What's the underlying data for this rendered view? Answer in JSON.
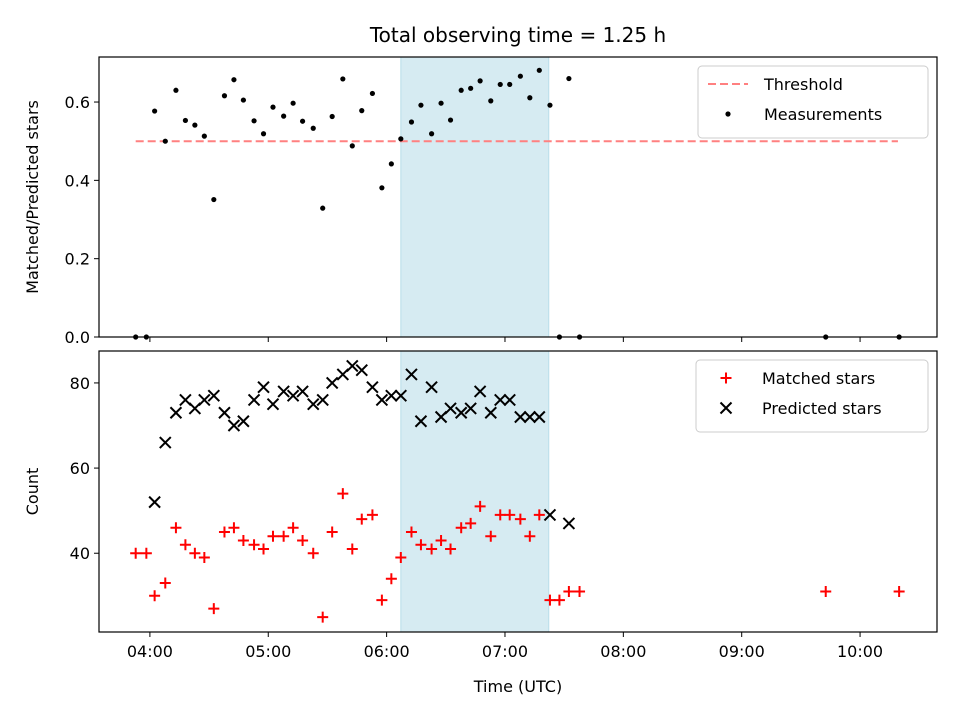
{
  "chart_data": [
    {
      "type": "scatter",
      "title": "Total observing time = 1.25 h",
      "xlabel": "",
      "ylabel": "Matched/Predicted stars",
      "xlim": [
        3.57,
        10.65
      ],
      "ylim": [
        0,
        0.715
      ],
      "yticks": [
        0.0,
        0.2,
        0.4,
        0.6
      ],
      "ytick_labels": [
        "0.0",
        "0.2",
        "0.4",
        "0.6"
      ],
      "xticks": [
        4,
        5,
        6,
        7,
        8,
        9,
        10
      ],
      "xtick_labels_shown": false,
      "highlight_span": {
        "x0": 6.12,
        "x1": 7.37,
        "color": "#add8e6"
      },
      "legend_position": "upper right",
      "legend": [
        "Threshold",
        "Measurements"
      ],
      "threshold": {
        "name": "Threshold",
        "y": 0.5,
        "x": [
          3.88,
          10.32
        ],
        "color": "#ff8080",
        "style": "dashed"
      },
      "series": [
        {
          "name": "Measurements",
          "color": "#000000",
          "marker": "dot",
          "points": [
            [
              3.88,
              0.0
            ],
            [
              3.97,
              0.0
            ],
            [
              4.04,
              0.577
            ],
            [
              4.13,
              0.5
            ],
            [
              4.22,
              0.63
            ],
            [
              4.3,
              0.553
            ],
            [
              4.38,
              0.541
            ],
            [
              4.46,
              0.513
            ],
            [
              4.54,
              0.351
            ],
            [
              4.63,
              0.616
            ],
            [
              4.71,
              0.657
            ],
            [
              4.79,
              0.605
            ],
            [
              4.88,
              0.552
            ],
            [
              4.96,
              0.519
            ],
            [
              5.04,
              0.587
            ],
            [
              5.13,
              0.564
            ],
            [
              5.21,
              0.597
            ],
            [
              5.29,
              0.551
            ],
            [
              5.38,
              0.533
            ],
            [
              5.46,
              0.329
            ],
            [
              5.54,
              0.563
            ],
            [
              5.63,
              0.659
            ],
            [
              5.71,
              0.488
            ],
            [
              5.79,
              0.578
            ],
            [
              5.88,
              0.622
            ],
            [
              5.96,
              0.381
            ],
            [
              6.04,
              0.442
            ],
            [
              6.12,
              0.506
            ],
            [
              6.21,
              0.549
            ],
            [
              6.29,
              0.592
            ],
            [
              6.38,
              0.519
            ],
            [
              6.46,
              0.597
            ],
            [
              6.54,
              0.554
            ],
            [
              6.63,
              0.63
            ],
            [
              6.71,
              0.635
            ],
            [
              6.79,
              0.654
            ],
            [
              6.88,
              0.603
            ],
            [
              6.96,
              0.645
            ],
            [
              7.04,
              0.645
            ],
            [
              7.13,
              0.666
            ],
            [
              7.21,
              0.611
            ],
            [
              7.29,
              0.681
            ],
            [
              7.38,
              0.592
            ],
            [
              7.46,
              0.0
            ],
            [
              7.54,
              0.66
            ],
            [
              7.63,
              0.0
            ],
            [
              9.71,
              0.0
            ],
            [
              10.33,
              0.0
            ]
          ]
        }
      ]
    },
    {
      "type": "scatter",
      "title": "",
      "xlabel": "Time (UTC)",
      "ylabel": "Count",
      "xlim": [
        3.57,
        10.65
      ],
      "ylim": [
        21.5,
        87.5
      ],
      "yticks": [
        40,
        60,
        80
      ],
      "ytick_labels": [
        "40",
        "60",
        "80"
      ],
      "xticks": [
        4,
        5,
        6,
        7,
        8,
        9,
        10
      ],
      "xtick_labels": [
        "04:00",
        "05:00",
        "06:00",
        "07:00",
        "08:00",
        "09:00",
        "10:00"
      ],
      "highlight_span": {
        "x0": 6.12,
        "x1": 7.37,
        "color": "#add8e6"
      },
      "legend_position": "upper right",
      "legend": [
        "Matched stars",
        "Predicted stars"
      ],
      "series": [
        {
          "name": "Matched stars",
          "color": "#ff0000",
          "marker": "plus",
          "points": [
            [
              3.88,
              40
            ],
            [
              3.97,
              40
            ],
            [
              4.04,
              30
            ],
            [
              4.13,
              33
            ],
            [
              4.22,
              46
            ],
            [
              4.3,
              42
            ],
            [
              4.38,
              40
            ],
            [
              4.46,
              39
            ],
            [
              4.54,
              27
            ],
            [
              4.63,
              45
            ],
            [
              4.71,
              46
            ],
            [
              4.79,
              43
            ],
            [
              4.88,
              42
            ],
            [
              4.96,
              41
            ],
            [
              5.04,
              44
            ],
            [
              5.13,
              44
            ],
            [
              5.21,
              46
            ],
            [
              5.29,
              43
            ],
            [
              5.38,
              40
            ],
            [
              5.46,
              25
            ],
            [
              5.54,
              45
            ],
            [
              5.63,
              54
            ],
            [
              5.71,
              41
            ],
            [
              5.79,
              48
            ],
            [
              5.88,
              49
            ],
            [
              5.96,
              29
            ],
            [
              6.04,
              34
            ],
            [
              6.12,
              39
            ],
            [
              6.21,
              45
            ],
            [
              6.29,
              42
            ],
            [
              6.38,
              41
            ],
            [
              6.46,
              43
            ],
            [
              6.54,
              41
            ],
            [
              6.63,
              46
            ],
            [
              6.71,
              47
            ],
            [
              6.79,
              51
            ],
            [
              6.88,
              44
            ],
            [
              6.96,
              49
            ],
            [
              7.04,
              49
            ],
            [
              7.13,
              48
            ],
            [
              7.21,
              44
            ],
            [
              7.29,
              49
            ],
            [
              7.38,
              29
            ],
            [
              7.46,
              29
            ],
            [
              7.54,
              31
            ],
            [
              7.63,
              31
            ],
            [
              9.71,
              31
            ],
            [
              10.33,
              31
            ]
          ]
        },
        {
          "name": "Predicted stars",
          "color": "#000000",
          "marker": "x",
          "points": [
            [
              4.04,
              52
            ],
            [
              4.13,
              66
            ],
            [
              4.22,
              73
            ],
            [
              4.3,
              76
            ],
            [
              4.38,
              74
            ],
            [
              4.46,
              76
            ],
            [
              4.54,
              77
            ],
            [
              4.63,
              73
            ],
            [
              4.71,
              70
            ],
            [
              4.79,
              71
            ],
            [
              4.88,
              76
            ],
            [
              4.96,
              79
            ],
            [
              5.04,
              75
            ],
            [
              5.13,
              78
            ],
            [
              5.21,
              77
            ],
            [
              5.29,
              78
            ],
            [
              5.38,
              75
            ],
            [
              5.46,
              76
            ],
            [
              5.54,
              80
            ],
            [
              5.63,
              82
            ],
            [
              5.71,
              84
            ],
            [
              5.79,
              83
            ],
            [
              5.88,
              79
            ],
            [
              5.96,
              76
            ],
            [
              6.04,
              77
            ],
            [
              6.12,
              77
            ],
            [
              6.21,
              82
            ],
            [
              6.29,
              71
            ],
            [
              6.38,
              79
            ],
            [
              6.46,
              72
            ],
            [
              6.54,
              74
            ],
            [
              6.63,
              73
            ],
            [
              6.71,
              74
            ],
            [
              6.79,
              78
            ],
            [
              6.88,
              73
            ],
            [
              6.96,
              76
            ],
            [
              7.04,
              76
            ],
            [
              7.13,
              72
            ],
            [
              7.21,
              72
            ],
            [
              7.29,
              72
            ],
            [
              7.38,
              49
            ],
            [
              7.54,
              47
            ]
          ]
        }
      ]
    }
  ]
}
